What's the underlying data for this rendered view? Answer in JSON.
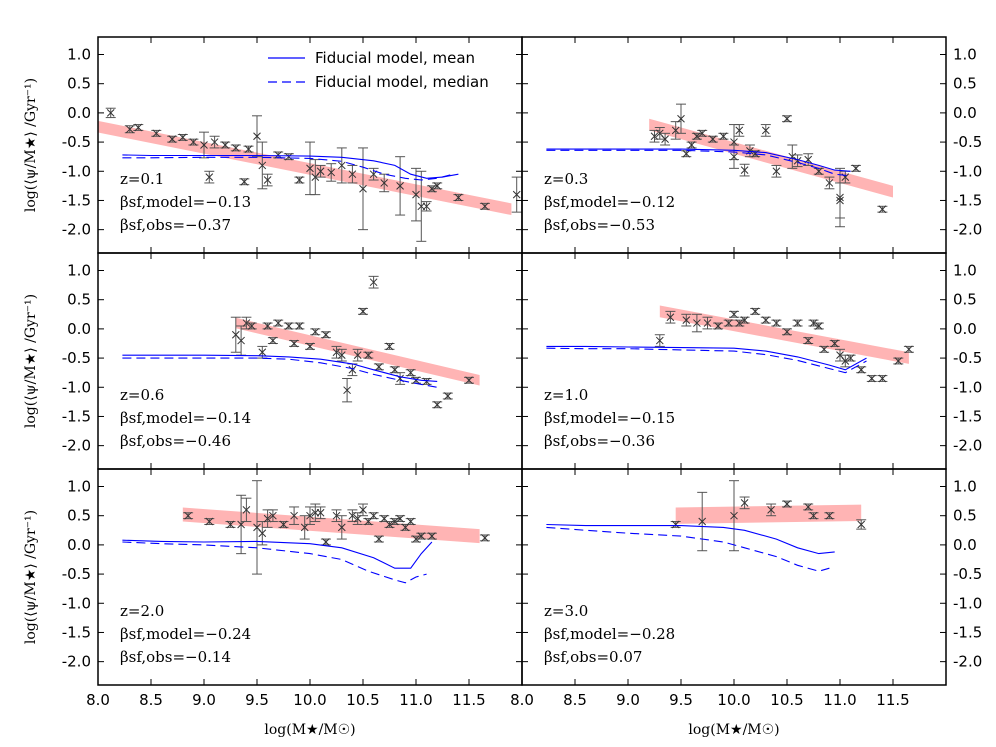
{
  "chart_data": {
    "type": "scatter",
    "xlabel": "log(M★/M☉)",
    "ylabel": "log(⟨ψ/M★⟩ /Gyr⁻¹)",
    "xlim": [
      8.0,
      12.0
    ],
    "ylim": [
      -2.4,
      1.3
    ],
    "xticks": [
      "8.0",
      "8.5",
      "9.0",
      "9.5",
      "10.0",
      "10.5",
      "11.0",
      "11.5"
    ],
    "yticks": [
      "1.0",
      "0.5",
      "0.0",
      "-0.5",
      "-1.0",
      "-1.5",
      "-2.0"
    ],
    "legend": {
      "location": "top-left panel, upper",
      "entries": [
        {
          "label": "Fiducial model, mean",
          "style": "solid",
          "color": "#0000ff"
        },
        {
          "label": "Fiducial model, median",
          "style": "dashed",
          "color": "#0000ff"
        }
      ]
    },
    "colors": {
      "model": "#0000ff",
      "band": "#ffb4b4",
      "obs": "#555555"
    },
    "panels": [
      {
        "z_label": "z=0.1",
        "beta_model_label": "βsf,model=−0.13",
        "beta_obs_label": "βsf,obs=−0.37",
        "mean": [
          [
            8.23,
            -0.72
          ],
          [
            8.5,
            -0.73
          ],
          [
            9.0,
            -0.73
          ],
          [
            9.5,
            -0.73
          ],
          [
            10.0,
            -0.74
          ],
          [
            10.3,
            -0.76
          ],
          [
            10.6,
            -0.82
          ],
          [
            10.8,
            -0.9
          ],
          [
            10.95,
            -1.05
          ],
          [
            11.1,
            -1.12
          ],
          [
            11.25,
            -1.1
          ],
          [
            11.4,
            -1.05
          ]
        ],
        "median": [
          [
            8.23,
            -0.77
          ],
          [
            8.5,
            -0.77
          ],
          [
            9.0,
            -0.76
          ],
          [
            9.5,
            -0.76
          ],
          [
            10.0,
            -0.78
          ],
          [
            10.3,
            -0.83
          ],
          [
            10.5,
            -0.93
          ],
          [
            10.7,
            -1.05
          ],
          [
            10.9,
            -1.12
          ],
          [
            11.05,
            -1.15
          ],
          [
            11.2,
            -1.12
          ],
          [
            11.35,
            -1.05
          ]
        ],
        "band": {
          "x": [
            7.9,
            11.9
          ],
          "y": [
            -0.2,
            -1.65
          ],
          "half_width": 0.1
        },
        "obs_x": [
          8.12,
          8.3,
          8.38,
          8.55,
          8.7,
          8.8,
          8.9,
          9.0,
          9.05,
          9.1,
          9.2,
          9.3,
          9.38,
          9.42,
          9.5,
          9.55,
          9.6,
          9.7,
          9.8,
          9.9,
          10.0,
          10.05,
          10.1,
          10.2,
          10.3,
          10.4,
          10.5,
          10.6,
          10.7,
          10.85,
          11.0,
          11.05,
          11.1,
          11.15,
          11.2,
          11.4,
          11.65,
          11.95
        ],
        "obs_y": [
          0.0,
          -0.28,
          -0.25,
          -0.35,
          -0.45,
          -0.42,
          -0.5,
          -0.55,
          -1.1,
          -0.5,
          -0.55,
          -0.6,
          -1.18,
          -0.62,
          -0.4,
          -0.9,
          -1.15,
          -0.72,
          -0.75,
          -1.15,
          -0.95,
          -1.1,
          -1.0,
          -1.02,
          -0.9,
          -1.05,
          -1.3,
          -1.05,
          -1.2,
          -1.25,
          -1.4,
          -1.6,
          -1.6,
          -1.3,
          -1.25,
          -1.45,
          -1.6,
          -1.4
        ],
        "obs_err": [
          0.08,
          0.06,
          0.05,
          0.05,
          0.05,
          0.05,
          0.05,
          0.22,
          0.1,
          0.1,
          0.05,
          0.05,
          0.05,
          0.05,
          0.35,
          0.4,
          0.1,
          0.05,
          0.05,
          0.05,
          0.45,
          0.3,
          0.1,
          0.15,
          0.3,
          0.15,
          0.7,
          0.1,
          0.15,
          0.5,
          0.45,
          0.6,
          0.08,
          0.05,
          0.05,
          0.05,
          0.05,
          0.3
        ]
      },
      {
        "z_label": "z=0.3",
        "beta_model_label": "βsf,model=−0.12",
        "beta_obs_label": "βsf,obs=−0.53",
        "mean": [
          [
            8.23,
            -0.62
          ],
          [
            8.6,
            -0.62
          ],
          [
            9.0,
            -0.62
          ],
          [
            9.5,
            -0.62
          ],
          [
            10.0,
            -0.64
          ],
          [
            10.3,
            -0.68
          ],
          [
            10.6,
            -0.8
          ],
          [
            10.8,
            -0.9
          ],
          [
            10.95,
            -0.98
          ],
          [
            11.1,
            -1.0
          ]
        ],
        "median": [
          [
            8.23,
            -0.64
          ],
          [
            8.6,
            -0.64
          ],
          [
            9.0,
            -0.64
          ],
          [
            9.5,
            -0.64
          ],
          [
            10.0,
            -0.67
          ],
          [
            10.3,
            -0.72
          ],
          [
            10.6,
            -0.85
          ],
          [
            10.8,
            -0.95
          ],
          [
            10.95,
            -1.05
          ],
          [
            11.1,
            -1.08
          ]
        ],
        "band": {
          "x": [
            9.2,
            11.5
          ],
          "y": [
            -0.2,
            -1.35
          ],
          "half_width": 0.1
        },
        "obs_x": [
          9.25,
          9.3,
          9.35,
          9.45,
          9.5,
          9.55,
          9.6,
          9.65,
          9.7,
          9.8,
          9.9,
          10.0,
          10.0,
          10.05,
          10.1,
          10.15,
          10.2,
          10.3,
          10.4,
          10.5,
          10.55,
          10.6,
          10.7,
          10.8,
          10.9,
          11.0,
          11.0,
          11.05,
          11.15,
          11.4
        ],
        "obs_y": [
          -0.4,
          -0.35,
          -0.45,
          -0.3,
          -0.1,
          -0.7,
          -0.55,
          -0.4,
          -0.35,
          -0.45,
          -0.4,
          -0.5,
          -0.75,
          -0.3,
          -0.98,
          -0.65,
          -0.7,
          -0.3,
          -1.0,
          -0.1,
          -0.75,
          -0.82,
          -0.8,
          -1.0,
          -1.2,
          -1.45,
          -1.5,
          -1.1,
          -0.95,
          -1.65
        ],
        "obs_err": [
          0.1,
          0.1,
          0.1,
          0.15,
          0.25,
          0.05,
          0.05,
          0.05,
          0.05,
          0.05,
          0.05,
          0.3,
          0.2,
          0.1,
          0.1,
          0.1,
          0.05,
          0.1,
          0.1,
          0.05,
          0.2,
          0.1,
          0.1,
          0.05,
          0.1,
          0.5,
          0.3,
          0.1,
          0.05,
          0.05
        ]
      },
      {
        "z_label": "z=0.6",
        "beta_model_label": "βsf,model=−0.14",
        "beta_obs_label": "βsf,obs=−0.46",
        "mean": [
          [
            8.23,
            -0.45
          ],
          [
            8.6,
            -0.45
          ],
          [
            9.0,
            -0.45
          ],
          [
            9.5,
            -0.46
          ],
          [
            9.8,
            -0.48
          ],
          [
            10.1,
            -0.52
          ],
          [
            10.4,
            -0.6
          ],
          [
            10.6,
            -0.7
          ],
          [
            10.85,
            -0.82
          ],
          [
            11.05,
            -0.88
          ],
          [
            11.2,
            -0.9
          ]
        ],
        "median": [
          [
            8.23,
            -0.5
          ],
          [
            8.6,
            -0.5
          ],
          [
            9.0,
            -0.5
          ],
          [
            9.5,
            -0.5
          ],
          [
            9.8,
            -0.52
          ],
          [
            10.1,
            -0.58
          ],
          [
            10.4,
            -0.68
          ],
          [
            10.6,
            -0.78
          ],
          [
            10.85,
            -0.88
          ],
          [
            11.05,
            -0.95
          ],
          [
            11.2,
            -1.0
          ]
        ],
        "band": {
          "x": [
            9.3,
            11.6
          ],
          "y": [
            0.1,
            -0.88
          ],
          "half_width": 0.09
        },
        "obs_x": [
          9.3,
          9.35,
          9.4,
          9.45,
          9.55,
          9.6,
          9.65,
          9.7,
          9.8,
          9.85,
          9.9,
          10.0,
          10.05,
          10.15,
          10.25,
          10.3,
          10.35,
          10.4,
          10.45,
          10.5,
          10.55,
          10.6,
          10.65,
          10.75,
          10.8,
          10.85,
          10.95,
          11.0,
          11.1,
          11.2,
          11.3,
          11.5
        ],
        "obs_y": [
          -0.1,
          -0.2,
          0.1,
          0.05,
          -0.4,
          0.05,
          -0.2,
          0.1,
          0.05,
          -0.25,
          0.05,
          -0.3,
          -0.05,
          -0.1,
          -0.4,
          -0.45,
          -1.05,
          -0.7,
          -0.45,
          0.3,
          -0.45,
          0.8,
          -0.65,
          -0.3,
          -0.7,
          -0.85,
          -0.75,
          -0.88,
          -0.9,
          -1.3,
          -1.15,
          -0.88
        ],
        "obs_err": [
          0.3,
          0.25,
          0.1,
          0.05,
          0.1,
          0.05,
          0.05,
          0.05,
          0.05,
          0.05,
          0.05,
          0.05,
          0.05,
          0.05,
          0.1,
          0.1,
          0.2,
          0.1,
          0.1,
          0.05,
          0.05,
          0.1,
          0.05,
          0.05,
          0.05,
          0.1,
          0.05,
          0.05,
          0.05,
          0.05,
          0.05,
          0.05
        ]
      },
      {
        "z_label": "z=1.0",
        "beta_model_label": "βsf,model=−0.15",
        "beta_obs_label": "βsf,obs=−0.36",
        "mean": [
          [
            8.23,
            -0.3
          ],
          [
            8.6,
            -0.3
          ],
          [
            9.0,
            -0.31
          ],
          [
            9.5,
            -0.32
          ],
          [
            10.0,
            -0.33
          ],
          [
            10.3,
            -0.38
          ],
          [
            10.6,
            -0.48
          ],
          [
            10.9,
            -0.62
          ],
          [
            11.05,
            -0.7
          ],
          [
            11.2,
            -0.55
          ],
          [
            11.25,
            -0.5
          ]
        ],
        "median": [
          [
            8.23,
            -0.33
          ],
          [
            8.6,
            -0.34
          ],
          [
            9.0,
            -0.34
          ],
          [
            9.5,
            -0.36
          ],
          [
            10.0,
            -0.38
          ],
          [
            10.3,
            -0.44
          ],
          [
            10.6,
            -0.54
          ],
          [
            10.9,
            -0.68
          ],
          [
            11.05,
            -0.75
          ],
          [
            11.2,
            -0.6
          ],
          [
            11.25,
            -0.55
          ]
        ],
        "band": {
          "x": [
            9.3,
            11.65
          ],
          "y": [
            0.3,
            -0.5
          ],
          "half_width": 0.1
        },
        "obs_x": [
          9.3,
          9.4,
          9.55,
          9.65,
          9.75,
          9.85,
          9.95,
          10.0,
          10.05,
          10.1,
          10.2,
          10.3,
          10.4,
          10.5,
          10.6,
          10.7,
          10.75,
          10.8,
          10.85,
          10.95,
          11.0,
          11.05,
          11.1,
          11.2,
          11.3,
          11.4,
          11.55,
          11.65
        ],
        "obs_y": [
          -0.2,
          0.2,
          0.15,
          0.1,
          0.1,
          0.05,
          0.1,
          0.25,
          0.1,
          0.15,
          0.3,
          0.15,
          0.1,
          -0.05,
          0.1,
          -0.2,
          0.1,
          0.05,
          -0.35,
          -0.25,
          -0.45,
          -0.55,
          -0.5,
          -0.7,
          -0.85,
          -0.85,
          -0.55,
          -0.35
        ],
        "obs_err": [
          0.1,
          0.1,
          0.1,
          0.15,
          0.1,
          0.05,
          0.05,
          0.05,
          0.05,
          0.05,
          0.05,
          0.05,
          0.05,
          0.05,
          0.05,
          0.05,
          0.05,
          0.05,
          0.05,
          0.05,
          0.1,
          0.1,
          0.05,
          0.05,
          0.05,
          0.05,
          0.05,
          0.05
        ]
      },
      {
        "z_label": "z=2.0",
        "beta_model_label": "βsf,model=−0.24",
        "beta_obs_label": "βsf,obs=−0.14",
        "mean": [
          [
            8.23,
            0.08
          ],
          [
            8.6,
            0.06
          ],
          [
            9.0,
            0.05
          ],
          [
            9.5,
            0.06
          ],
          [
            10.0,
            0.02
          ],
          [
            10.3,
            -0.05
          ],
          [
            10.6,
            -0.22
          ],
          [
            10.8,
            -0.4
          ],
          [
            10.95,
            -0.4
          ],
          [
            11.05,
            -0.15
          ],
          [
            11.15,
            0.05
          ]
        ],
        "median": [
          [
            8.23,
            0.05
          ],
          [
            8.6,
            0.02
          ],
          [
            9.0,
            0.0
          ],
          [
            9.5,
            -0.05
          ],
          [
            10.0,
            -0.15
          ],
          [
            10.3,
            -0.25
          ],
          [
            10.55,
            -0.45
          ],
          [
            10.8,
            -0.6
          ],
          [
            10.9,
            -0.65
          ],
          [
            11.0,
            -0.55
          ],
          [
            11.1,
            -0.5
          ]
        ],
        "band": {
          "x": [
            8.8,
            11.6
          ],
          "y": [
            0.52,
            0.15
          ],
          "half_width": 0.12
        },
        "obs_x": [
          8.85,
          9.05,
          9.25,
          9.35,
          9.4,
          9.5,
          9.55,
          9.6,
          9.65,
          9.75,
          9.85,
          9.95,
          10.0,
          10.05,
          10.1,
          10.15,
          10.25,
          10.3,
          10.4,
          10.45,
          10.5,
          10.55,
          10.6,
          10.65,
          10.7,
          10.75,
          10.8,
          10.85,
          10.9,
          10.95,
          11.0,
          11.05,
          11.15,
          11.65
        ],
        "obs_y": [
          0.5,
          0.4,
          0.35,
          0.35,
          0.6,
          0.3,
          0.2,
          0.45,
          0.5,
          0.35,
          0.5,
          0.3,
          0.5,
          0.55,
          0.55,
          0.05,
          0.5,
          0.3,
          0.5,
          0.45,
          0.6,
          0.4,
          0.5,
          0.1,
          0.45,
          0.35,
          0.4,
          0.45,
          0.3,
          0.4,
          0.1,
          0.15,
          0.15,
          0.12
        ],
        "obs_err": [
          0.05,
          0.05,
          0.05,
          0.5,
          0.2,
          0.8,
          0.2,
          0.15,
          0.1,
          0.05,
          0.15,
          0.2,
          0.15,
          0.15,
          0.1,
          0.05,
          0.1,
          0.2,
          0.1,
          0.1,
          0.1,
          0.05,
          0.05,
          0.05,
          0.05,
          0.05,
          0.05,
          0.05,
          0.05,
          0.05,
          0.05,
          0.05,
          0.05,
          0.05
        ]
      },
      {
        "z_label": "z=3.0",
        "beta_model_label": "βsf,model=−0.28",
        "beta_obs_label": "βsf,obs=0.07",
        "mean": [
          [
            8.23,
            0.35
          ],
          [
            8.6,
            0.33
          ],
          [
            9.0,
            0.33
          ],
          [
            9.5,
            0.33
          ],
          [
            9.9,
            0.3
          ],
          [
            10.1,
            0.25
          ],
          [
            10.4,
            0.1
          ],
          [
            10.6,
            -0.05
          ],
          [
            10.8,
            -0.15
          ],
          [
            10.95,
            -0.12
          ]
        ],
        "median": [
          [
            8.23,
            0.3
          ],
          [
            8.6,
            0.25
          ],
          [
            9.0,
            0.2
          ],
          [
            9.5,
            0.15
          ],
          [
            9.9,
            0.05
          ],
          [
            10.1,
            -0.05
          ],
          [
            10.4,
            -0.2
          ],
          [
            10.6,
            -0.35
          ],
          [
            10.8,
            -0.45
          ],
          [
            10.9,
            -0.4
          ]
        ],
        "band": {
          "x": [
            9.45,
            11.2
          ],
          "y": [
            0.5,
            0.55
          ],
          "half_width": 0.14
        },
        "obs_x": [
          9.45,
          9.7,
          10.0,
          10.1,
          10.35,
          10.5,
          10.7,
          10.75,
          10.9,
          11.2
        ],
        "obs_y": [
          0.35,
          0.4,
          0.5,
          0.72,
          0.6,
          0.7,
          0.65,
          0.5,
          0.5,
          0.35
        ],
        "obs_err": [
          0.05,
          0.5,
          0.6,
          0.1,
          0.1,
          0.05,
          0.05,
          0.05,
          0.05,
          0.08
        ]
      }
    ]
  }
}
